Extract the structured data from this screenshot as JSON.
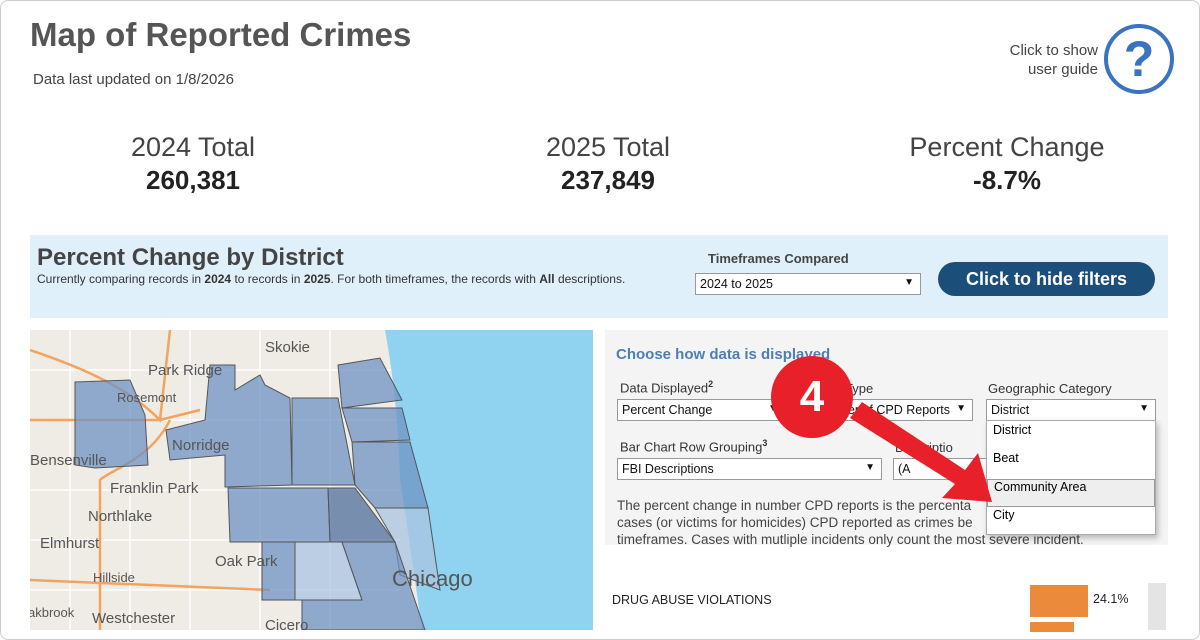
{
  "header": {
    "title": "Map of Reported Crimes",
    "updated": "Data last updated on 1/8/2026",
    "guide_line1": "Click to show",
    "guide_line2": "user guide",
    "help_icon": "question-circle-icon"
  },
  "stats": [
    {
      "label": "2024 Total",
      "value": "260,381"
    },
    {
      "label": "2025 Total",
      "value": "237,849"
    },
    {
      "label": "Percent Change",
      "value": "-8.7%"
    }
  ],
  "band": {
    "title": "Percent Change by District",
    "sub_pre": "Currently comparing records in ",
    "y1": "2024",
    "sub_mid": " to records in ",
    "y2": "2025",
    "sub_mid2": ". For both timeframes, the records with ",
    "all": "All",
    "sub_end": " descriptions.",
    "tf_label": "Timeframes Compared",
    "tf_value": "2024 to 2025",
    "hide_button": "Click to hide filters"
  },
  "map": {
    "places": [
      "Skokie",
      "Park Ridge",
      "Rosemont",
      "Norridge",
      "Bensenville",
      "Franklin Park",
      "Northlake",
      "Elmhurst",
      "Oak Park",
      "Hillside",
      "Chicago",
      "akbrook",
      "Westchester",
      "Cicero"
    ],
    "water_color": "#8fd3f0",
    "district_color": "#6f93c4"
  },
  "panel": {
    "title": "Choose how data is displayed",
    "data_displayed_label": "Data Displayed",
    "data_displayed_sup": "2",
    "data_displayed_value": "Percent Change",
    "type_label": "Type",
    "type_value": "er of CPD Reports",
    "geo_label": "Geographic Category",
    "geo_value": "District",
    "grouping_label": "Bar Chart Row Grouping",
    "grouping_sup": "3",
    "grouping_value": "FBI Descriptions",
    "desc_label": "Descriptio",
    "desc_value": "(A",
    "desc_lines": [
      "The percent change in number CPD reports is the percenta",
      "cases (or victims for homicides) CPD reported as crimes be",
      "timeframes. Cases with mutliple incidents only count the most severe incident."
    ],
    "geo_options": [
      "District",
      "Beat",
      "Community Area",
      "City"
    ],
    "geo_highlighted": "Community Area"
  },
  "annotation": {
    "step": "4",
    "color": "#e8202a"
  },
  "bars": [
    {
      "label": "DRUG ABUSE VIOLATIONS",
      "value": "24.1%"
    }
  ],
  "bar_color": "#eb8a3a"
}
